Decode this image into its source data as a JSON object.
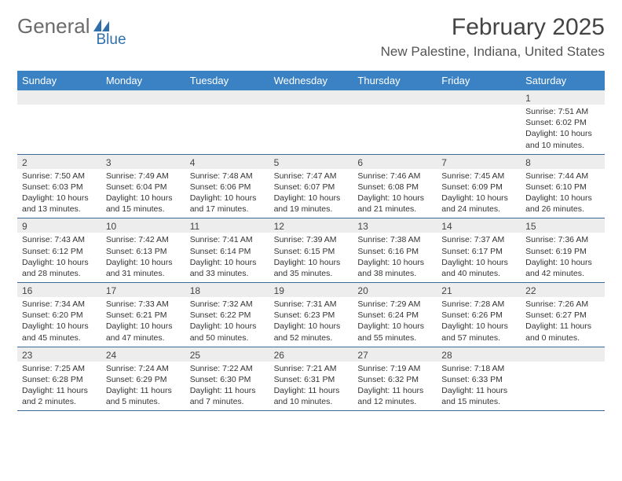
{
  "logo": {
    "text1": "General",
    "text2": "Blue"
  },
  "header": {
    "month_title": "February 2025",
    "location": "New Palestine, Indiana, United States"
  },
  "calendar": {
    "day_labels": [
      "Sunday",
      "Monday",
      "Tuesday",
      "Wednesday",
      "Thursday",
      "Friday",
      "Saturday"
    ],
    "header_bg": "#3b82c4",
    "header_fg": "#ffffff",
    "border_color": "#3b6a99",
    "numrow_bg": "#ededed",
    "font_size_body": 10.5,
    "weeks": [
      [
        {
          "n": "",
          "empty": true
        },
        {
          "n": "",
          "empty": true
        },
        {
          "n": "",
          "empty": true
        },
        {
          "n": "",
          "empty": true
        },
        {
          "n": "",
          "empty": true
        },
        {
          "n": "",
          "empty": true
        },
        {
          "n": "1",
          "sunrise": "Sunrise: 7:51 AM",
          "sunset": "Sunset: 6:02 PM",
          "day1": "Daylight: 10 hours",
          "day2": "and 10 minutes."
        }
      ],
      [
        {
          "n": "2",
          "sunrise": "Sunrise: 7:50 AM",
          "sunset": "Sunset: 6:03 PM",
          "day1": "Daylight: 10 hours",
          "day2": "and 13 minutes."
        },
        {
          "n": "3",
          "sunrise": "Sunrise: 7:49 AM",
          "sunset": "Sunset: 6:04 PM",
          "day1": "Daylight: 10 hours",
          "day2": "and 15 minutes."
        },
        {
          "n": "4",
          "sunrise": "Sunrise: 7:48 AM",
          "sunset": "Sunset: 6:06 PM",
          "day1": "Daylight: 10 hours",
          "day2": "and 17 minutes."
        },
        {
          "n": "5",
          "sunrise": "Sunrise: 7:47 AM",
          "sunset": "Sunset: 6:07 PM",
          "day1": "Daylight: 10 hours",
          "day2": "and 19 minutes."
        },
        {
          "n": "6",
          "sunrise": "Sunrise: 7:46 AM",
          "sunset": "Sunset: 6:08 PM",
          "day1": "Daylight: 10 hours",
          "day2": "and 21 minutes."
        },
        {
          "n": "7",
          "sunrise": "Sunrise: 7:45 AM",
          "sunset": "Sunset: 6:09 PM",
          "day1": "Daylight: 10 hours",
          "day2": "and 24 minutes."
        },
        {
          "n": "8",
          "sunrise": "Sunrise: 7:44 AM",
          "sunset": "Sunset: 6:10 PM",
          "day1": "Daylight: 10 hours",
          "day2": "and 26 minutes."
        }
      ],
      [
        {
          "n": "9",
          "sunrise": "Sunrise: 7:43 AM",
          "sunset": "Sunset: 6:12 PM",
          "day1": "Daylight: 10 hours",
          "day2": "and 28 minutes."
        },
        {
          "n": "10",
          "sunrise": "Sunrise: 7:42 AM",
          "sunset": "Sunset: 6:13 PM",
          "day1": "Daylight: 10 hours",
          "day2": "and 31 minutes."
        },
        {
          "n": "11",
          "sunrise": "Sunrise: 7:41 AM",
          "sunset": "Sunset: 6:14 PM",
          "day1": "Daylight: 10 hours",
          "day2": "and 33 minutes."
        },
        {
          "n": "12",
          "sunrise": "Sunrise: 7:39 AM",
          "sunset": "Sunset: 6:15 PM",
          "day1": "Daylight: 10 hours",
          "day2": "and 35 minutes."
        },
        {
          "n": "13",
          "sunrise": "Sunrise: 7:38 AM",
          "sunset": "Sunset: 6:16 PM",
          "day1": "Daylight: 10 hours",
          "day2": "and 38 minutes."
        },
        {
          "n": "14",
          "sunrise": "Sunrise: 7:37 AM",
          "sunset": "Sunset: 6:17 PM",
          "day1": "Daylight: 10 hours",
          "day2": "and 40 minutes."
        },
        {
          "n": "15",
          "sunrise": "Sunrise: 7:36 AM",
          "sunset": "Sunset: 6:19 PM",
          "day1": "Daylight: 10 hours",
          "day2": "and 42 minutes."
        }
      ],
      [
        {
          "n": "16",
          "sunrise": "Sunrise: 7:34 AM",
          "sunset": "Sunset: 6:20 PM",
          "day1": "Daylight: 10 hours",
          "day2": "and 45 minutes."
        },
        {
          "n": "17",
          "sunrise": "Sunrise: 7:33 AM",
          "sunset": "Sunset: 6:21 PM",
          "day1": "Daylight: 10 hours",
          "day2": "and 47 minutes."
        },
        {
          "n": "18",
          "sunrise": "Sunrise: 7:32 AM",
          "sunset": "Sunset: 6:22 PM",
          "day1": "Daylight: 10 hours",
          "day2": "and 50 minutes."
        },
        {
          "n": "19",
          "sunrise": "Sunrise: 7:31 AM",
          "sunset": "Sunset: 6:23 PM",
          "day1": "Daylight: 10 hours",
          "day2": "and 52 minutes."
        },
        {
          "n": "20",
          "sunrise": "Sunrise: 7:29 AM",
          "sunset": "Sunset: 6:24 PM",
          "day1": "Daylight: 10 hours",
          "day2": "and 55 minutes."
        },
        {
          "n": "21",
          "sunrise": "Sunrise: 7:28 AM",
          "sunset": "Sunset: 6:26 PM",
          "day1": "Daylight: 10 hours",
          "day2": "and 57 minutes."
        },
        {
          "n": "22",
          "sunrise": "Sunrise: 7:26 AM",
          "sunset": "Sunset: 6:27 PM",
          "day1": "Daylight: 11 hours",
          "day2": "and 0 minutes."
        }
      ],
      [
        {
          "n": "23",
          "sunrise": "Sunrise: 7:25 AM",
          "sunset": "Sunset: 6:28 PM",
          "day1": "Daylight: 11 hours",
          "day2": "and 2 minutes."
        },
        {
          "n": "24",
          "sunrise": "Sunrise: 7:24 AM",
          "sunset": "Sunset: 6:29 PM",
          "day1": "Daylight: 11 hours",
          "day2": "and 5 minutes."
        },
        {
          "n": "25",
          "sunrise": "Sunrise: 7:22 AM",
          "sunset": "Sunset: 6:30 PM",
          "day1": "Daylight: 11 hours",
          "day2": "and 7 minutes."
        },
        {
          "n": "26",
          "sunrise": "Sunrise: 7:21 AM",
          "sunset": "Sunset: 6:31 PM",
          "day1": "Daylight: 11 hours",
          "day2": "and 10 minutes."
        },
        {
          "n": "27",
          "sunrise": "Sunrise: 7:19 AM",
          "sunset": "Sunset: 6:32 PM",
          "day1": "Daylight: 11 hours",
          "day2": "and 12 minutes."
        },
        {
          "n": "28",
          "sunrise": "Sunrise: 7:18 AM",
          "sunset": "Sunset: 6:33 PM",
          "day1": "Daylight: 11 hours",
          "day2": "and 15 minutes."
        },
        {
          "n": "",
          "empty": true
        }
      ]
    ]
  }
}
